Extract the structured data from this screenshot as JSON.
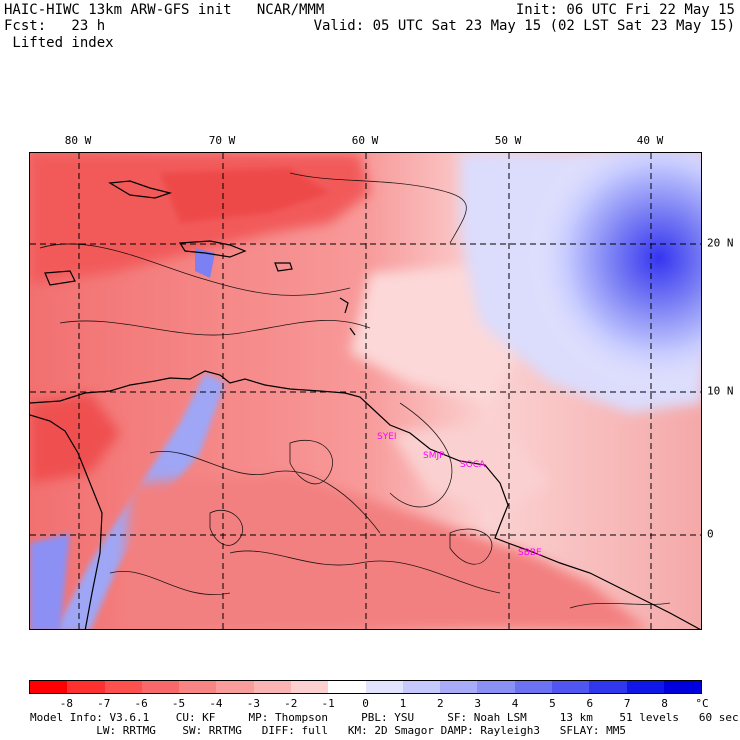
{
  "header": {
    "line1_left": "HAIC-HIWC 13km ARW-GFS init   NCAR/MMM",
    "line2_left": "Fcst:   23 h",
    "line3_left": " Lifted index",
    "line1_right": "Init: 06 UTC Fri 22 May 15",
    "line2_right": "Valid: 05 UTC Sat 23 May 15 (02 LST Sat 23 May 15)"
  },
  "map": {
    "lon_labels": [
      "80 W",
      "70 W",
      "60 W",
      "50 W",
      "40 W"
    ],
    "lat_labels": [
      "20 N",
      "10 N",
      "0"
    ],
    "stations": [
      "SYEI",
      "SMJP",
      "SOCA",
      "SBBE"
    ],
    "colors": {
      "warm_deep": "#ff3c3c",
      "warm_mid": "#f87878",
      "warm_light": "#fbb0b0",
      "neutral": "#fde4e4",
      "cool_light": "#c8cdfc",
      "cool_mid": "#8c90f5",
      "cool_deep": "#3535f0",
      "coast": "#000000"
    }
  },
  "colorbar": {
    "labels": [
      "-8",
      "-7",
      "-6",
      "-5",
      "-4",
      "-3",
      "-2",
      "-1",
      "0",
      "1",
      "2",
      "3",
      "4",
      "5",
      "6",
      "7",
      "8"
    ],
    "unit": "°C",
    "swatches": [
      "#ff0000",
      "#ff3030",
      "#ff5050",
      "#f86a6a",
      "#f88484",
      "#fa9c9c",
      "#fbb4b4",
      "#fcd0d0",
      "#ffffff",
      "#e2e4ff",
      "#c6c9fb",
      "#a8acf8",
      "#8b90f5",
      "#6d72f2",
      "#5056ef",
      "#3037ec",
      "#1018e8",
      "#0000dc"
    ]
  },
  "footer": {
    "line1": "Model Info: V3.6.1    CU: KF     MP: Thompson     PBL: YSU     SF: Noah LSM     13 km    51 levels   60 sec",
    "line2": "          LW: RRTMG    SW: RRTMG   DIFF: full   KM: 2D Smagor DAMP: Rayleigh3   SFLAY: MM5"
  }
}
